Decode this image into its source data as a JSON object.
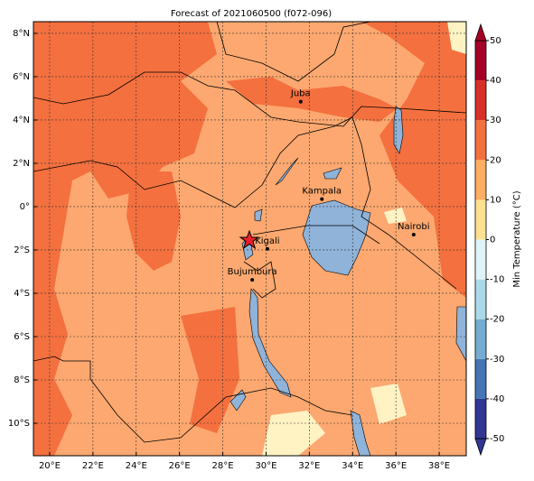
{
  "title": "Forecast of 2021060500 (f072-096)",
  "lon_range": [
    19.25,
    39.25
  ],
  "lat_range": [
    -11.5,
    8.54
  ],
  "lon_ticks": [
    {
      "value": 20,
      "label": "20°E"
    },
    {
      "value": 22,
      "label": "22°E"
    },
    {
      "value": 24,
      "label": "24°E"
    },
    {
      "value": 26,
      "label": "26°E"
    },
    {
      "value": 28,
      "label": "28°E"
    },
    {
      "value": 30,
      "label": "30°E"
    },
    {
      "value": 32,
      "label": "32°E"
    },
    {
      "value": 34,
      "label": "34°E"
    },
    {
      "value": 36,
      "label": "36°E"
    },
    {
      "value": 38,
      "label": "38°E"
    }
  ],
  "lat_ticks": [
    {
      "value": 8,
      "label": "8°N"
    },
    {
      "value": 6,
      "label": "6°N"
    },
    {
      "value": 4,
      "label": "4°N"
    },
    {
      "value": 2,
      "label": "2°N"
    },
    {
      "value": 0,
      "label": "0°"
    },
    {
      "value": -2,
      "label": "2°S"
    },
    {
      "value": -4,
      "label": "4°S"
    },
    {
      "value": -6,
      "label": "6°S"
    },
    {
      "value": -8,
      "label": "8°S"
    },
    {
      "value": -10,
      "label": "10°S"
    }
  ],
  "cities": [
    {
      "name": "Juba",
      "lon": 31.6,
      "lat": 4.85
    },
    {
      "name": "Kampala",
      "lon": 32.58,
      "lat": 0.35
    },
    {
      "name": "Nairobi",
      "lon": 36.82,
      "lat": -1.29
    },
    {
      "name": "Kigali",
      "lon": 30.06,
      "lat": -1.95
    },
    {
      "name": "Bujumbura",
      "lon": 29.36,
      "lat": -3.38
    }
  ],
  "colorbar": {
    "label": "Min Temperature (°C)",
    "lim": [
      -50,
      50
    ],
    "ticks": [
      50,
      40,
      30,
      20,
      10,
      0,
      -10,
      -20,
      -30,
      -40,
      -50
    ],
    "colors": [
      "#313695",
      "#4575b4",
      "#74add1",
      "#abd9e9",
      "#e0f3f8",
      "#fee090",
      "#fdae61",
      "#f4703f",
      "#d73027",
      "#a50026"
    ]
  }
}
